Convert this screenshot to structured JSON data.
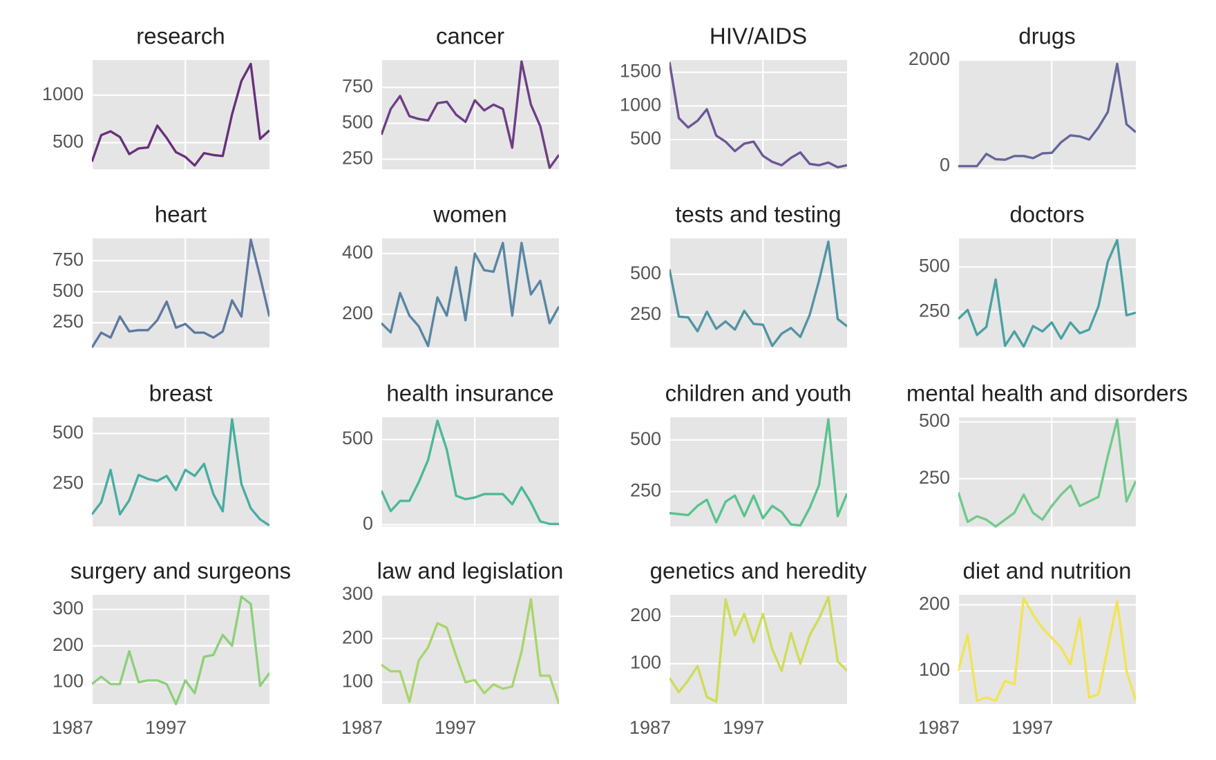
{
  "chart_data": [
    {
      "type": "line",
      "title": "research",
      "x": [
        1987,
        1988,
        1989,
        1990,
        1991,
        1992,
        1993,
        1994,
        1995,
        1996,
        1997,
        1998,
        1999,
        2000,
        2001,
        2002,
        2003,
        2004,
        2005,
        2006
      ],
      "xlim": [
        1987,
        2006
      ],
      "xticks": [
        1987,
        1997
      ],
      "series": [
        {
          "name": "research",
          "color": "#67307a",
          "values": [
            300,
            580,
            620,
            560,
            380,
            440,
            450,
            680,
            550,
            400,
            350,
            260,
            390,
            370,
            360,
            800,
            1150,
            1330,
            540,
            630
          ]
        }
      ],
      "ylim": [
        220,
        1370
      ],
      "yticks": [
        500,
        1000
      ],
      "grid": true
    },
    {
      "type": "line",
      "title": "cancer",
      "x": [
        1987,
        1988,
        1989,
        1990,
        1991,
        1992,
        1993,
        1994,
        1995,
        1996,
        1997,
        1998,
        1999,
        2000,
        2001,
        2002,
        2003,
        2004,
        2005,
        2006
      ],
      "xlim": [
        1987,
        2006
      ],
      "xticks": [
        1987,
        1997
      ],
      "series": [
        {
          "name": "cancer",
          "color": "#6e3e86",
          "values": [
            420,
            600,
            690,
            550,
            530,
            520,
            640,
            650,
            560,
            510,
            660,
            590,
            630,
            600,
            330,
            930,
            630,
            480,
            190,
            280
          ]
        }
      ],
      "ylim": [
        180,
        940
      ],
      "yticks": [
        250,
        500,
        750
      ],
      "grid": true
    },
    {
      "type": "line",
      "title": "HIV/AIDS",
      "x": [
        1987,
        1988,
        1989,
        1990,
        1991,
        1992,
        1993,
        1994,
        1995,
        1996,
        1997,
        1998,
        1999,
        2000,
        2001,
        2002,
        2003,
        2004,
        2005,
        2006
      ],
      "xlim": [
        1987,
        2006
      ],
      "xticks": [
        1987,
        1997
      ],
      "series": [
        {
          "name": "HIV/AIDS",
          "color": "#6b5696",
          "values": [
            1650,
            820,
            680,
            780,
            950,
            560,
            470,
            330,
            440,
            470,
            260,
            170,
            120,
            230,
            310,
            140,
            120,
            160,
            90,
            120
          ]
        }
      ],
      "ylim": [
        60,
        1680
      ],
      "yticks": [
        500,
        1000,
        1500
      ],
      "grid": true
    },
    {
      "type": "line",
      "title": "drugs",
      "x": [
        1987,
        1988,
        1989,
        1990,
        1991,
        1992,
        1993,
        1994,
        1995,
        1996,
        1997,
        1998,
        1999,
        2000,
        2001,
        2002,
        2003,
        2004,
        2005,
        2006
      ],
      "xlim": [
        1987,
        2006
      ],
      "xticks": [
        1987,
        1997
      ],
      "series": [
        {
          "name": "drugs",
          "color": "#65669b",
          "values": [
            0,
            0,
            0,
            230,
            130,
            120,
            190,
            190,
            150,
            240,
            250,
            450,
            580,
            560,
            500,
            730,
            1020,
            1930,
            790,
            640
          ]
        }
      ],
      "ylim": [
        -60,
        2000
      ],
      "yticks": [
        0,
        2000
      ],
      "grid": true
    },
    {
      "type": "line",
      "title": "heart",
      "x": [
        1987,
        1988,
        1989,
        1990,
        1991,
        1992,
        1993,
        1994,
        1995,
        1996,
        1997,
        1998,
        1999,
        2000,
        2001,
        2002,
        2003,
        2004,
        2005,
        2006
      ],
      "xlim": [
        1987,
        2006
      ],
      "xticks": [
        1987,
        1997
      ],
      "series": [
        {
          "name": "heart",
          "color": "#5e79a0",
          "values": [
            50,
            170,
            130,
            300,
            180,
            190,
            190,
            270,
            420,
            210,
            240,
            170,
            170,
            130,
            180,
            430,
            300,
            920,
            620,
            300
          ]
        }
      ],
      "ylim": [
        50,
        930
      ],
      "yticks": [
        250,
        500,
        750
      ],
      "grid": true
    },
    {
      "type": "line",
      "title": "women",
      "x": [
        1987,
        1988,
        1989,
        1990,
        1991,
        1992,
        1993,
        1994,
        1995,
        1996,
        1997,
        1998,
        1999,
        2000,
        2001,
        2002,
        2003,
        2004,
        2005,
        2006
      ],
      "xlim": [
        1987,
        2006
      ],
      "xticks": [
        1987,
        1997
      ],
      "series": [
        {
          "name": "women",
          "color": "#5886a3",
          "values": [
            170,
            140,
            270,
            195,
            160,
            95,
            255,
            195,
            355,
            180,
            400,
            345,
            340,
            435,
            195,
            435,
            265,
            310,
            170,
            225
          ]
        }
      ],
      "ylim": [
        90,
        450
      ],
      "yticks": [
        200,
        400
      ],
      "grid": true
    },
    {
      "type": "line",
      "title": "tests and testing",
      "x": [
        1987,
        1988,
        1989,
        1990,
        1991,
        1992,
        1993,
        1994,
        1995,
        1996,
        1997,
        1998,
        1999,
        2000,
        2001,
        2002,
        2003,
        2004,
        2005,
        2006
      ],
      "xlim": [
        1987,
        2006
      ],
      "xticks": [
        1987,
        1997
      ],
      "series": [
        {
          "name": "tests and testing",
          "color": "#5294a3",
          "values": [
            530,
            240,
            235,
            150,
            270,
            165,
            210,
            160,
            275,
            195,
            190,
            60,
            135,
            170,
            115,
            250,
            460,
            700,
            225,
            180
          ]
        }
      ],
      "ylim": [
        50,
        720
      ],
      "yticks": [
        250,
        500
      ],
      "grid": true
    },
    {
      "type": "line",
      "title": "doctors",
      "x": [
        1987,
        1988,
        1989,
        1990,
        1991,
        1992,
        1993,
        1994,
        1995,
        1996,
        1997,
        1998,
        1999,
        2000,
        2001,
        2002,
        2003,
        2004,
        2005,
        2006
      ],
      "xlim": [
        1987,
        2006
      ],
      "xticks": [
        1987,
        1997
      ],
      "series": [
        {
          "name": "doctors",
          "color": "#4aa1a2",
          "values": [
            210,
            260,
            120,
            165,
            430,
            60,
            140,
            55,
            170,
            140,
            190,
            100,
            190,
            130,
            150,
            280,
            530,
            650,
            230,
            245
          ]
        }
      ],
      "ylim": [
        50,
        660
      ],
      "yticks": [
        250,
        500
      ],
      "grid": true
    },
    {
      "type": "line",
      "title": "breast",
      "x": [
        1987,
        1988,
        1989,
        1990,
        1991,
        1992,
        1993,
        1994,
        1995,
        1996,
        1997,
        1998,
        1999,
        2000,
        2001,
        2002,
        2003,
        2004,
        2005,
        2006
      ],
      "xlim": [
        1987,
        2006
      ],
      "xticks": [
        1987,
        1997
      ],
      "series": [
        {
          "name": "breast",
          "color": "#48ada0",
          "values": [
            100,
            160,
            320,
            100,
            170,
            295,
            275,
            265,
            290,
            220,
            320,
            290,
            350,
            200,
            115,
            570,
            250,
            130,
            75,
            45
          ]
        }
      ],
      "ylim": [
        40,
        580
      ],
      "yticks": [
        250,
        500
      ],
      "grid": true
    },
    {
      "type": "line",
      "title": "health insurance",
      "x": [
        1987,
        1988,
        1989,
        1990,
        1991,
        1992,
        1993,
        1994,
        1995,
        1996,
        1997,
        1998,
        1999,
        2000,
        2001,
        2002,
        2003,
        2004,
        2005,
        2006
      ],
      "xlim": [
        1987,
        2006
      ],
      "xticks": [
        1987,
        1997
      ],
      "series": [
        {
          "name": "health insurance",
          "color": "#4cb898",
          "values": [
            200,
            80,
            140,
            140,
            250,
            380,
            610,
            440,
            170,
            150,
            160,
            180,
            180,
            180,
            120,
            220,
            130,
            20,
            5,
            5
          ]
        }
      ],
      "ylim": [
        -10,
        630
      ],
      "yticks": [
        0,
        500
      ],
      "grid": true
    },
    {
      "type": "line",
      "title": "children and youth",
      "x": [
        1987,
        1988,
        1989,
        1990,
        1991,
        1992,
        1993,
        1994,
        1995,
        1996,
        1997,
        1998,
        1999,
        2000,
        2001,
        2002,
        2003,
        2004,
        2005,
        2006
      ],
      "xlim": [
        1987,
        2006
      ],
      "xticks": [
        1987,
        1997
      ],
      "series": [
        {
          "name": "children and youth",
          "color": "#5ac28e",
          "values": [
            145,
            140,
            135,
            180,
            210,
            100,
            200,
            230,
            130,
            230,
            120,
            180,
            150,
            90,
            85,
            170,
            280,
            600,
            130,
            240
          ]
        }
      ],
      "ylim": [
        80,
        610
      ],
      "yticks": [
        250,
        500
      ],
      "grid": true
    },
    {
      "type": "line",
      "title": "mental health and disorders",
      "x": [
        1987,
        1988,
        1989,
        1990,
        1991,
        1992,
        1993,
        1994,
        1995,
        1996,
        1997,
        1998,
        1999,
        2000,
        2001,
        2002,
        2003,
        2004,
        2005,
        2006
      ],
      "xlim": [
        1987,
        2006
      ],
      "xticks": [
        1987,
        1997
      ],
      "series": [
        {
          "name": "mental health and disorders",
          "color": "#73c98a",
          "values": [
            190,
            60,
            85,
            70,
            40,
            70,
            100,
            180,
            100,
            70,
            130,
            180,
            220,
            130,
            150,
            170,
            350,
            510,
            150,
            240
          ]
        }
      ],
      "ylim": [
        40,
        520
      ],
      "yticks": [
        250,
        500
      ],
      "grid": true
    },
    {
      "type": "line",
      "title": "surgery and surgeons",
      "x": [
        1987,
        1988,
        1989,
        1990,
        1991,
        1992,
        1993,
        1994,
        1995,
        1996,
        1997,
        1998,
        1999,
        2000,
        2001,
        2002,
        2003,
        2004,
        2005,
        2006
      ],
      "xlim": [
        1987,
        2006
      ],
      "xticks": [
        1987,
        1997
      ],
      "series": [
        {
          "name": "surgery and surgeons",
          "color": "#8ecf7c",
          "values": [
            95,
            115,
            95,
            95,
            185,
            100,
            105,
            105,
            95,
            40,
            105,
            70,
            170,
            175,
            230,
            200,
            335,
            315,
            90,
            125
          ]
        }
      ],
      "ylim": [
        40,
        340
      ],
      "yticks": [
        100,
        200,
        300
      ],
      "grid": true
    },
    {
      "type": "line",
      "title": "law and legislation",
      "x": [
        1987,
        1988,
        1989,
        1990,
        1991,
        1992,
        1993,
        1994,
        1995,
        1996,
        1997,
        1998,
        1999,
        2000,
        2001,
        2002,
        2003,
        2004,
        2005,
        2006
      ],
      "xlim": [
        1987,
        2006
      ],
      "xticks": [
        1987,
        1997
      ],
      "series": [
        {
          "name": "law and legislation",
          "color": "#a8d56c",
          "values": [
            140,
            125,
            125,
            55,
            150,
            180,
            235,
            225,
            160,
            100,
            105,
            75,
            95,
            85,
            90,
            170,
            290,
            115,
            115,
            50
          ]
        }
      ],
      "ylim": [
        50,
        300
      ],
      "yticks": [
        100,
        200,
        300
      ],
      "grid": true
    },
    {
      "type": "line",
      "title": "genetics and heredity",
      "x": [
        1987,
        1988,
        1989,
        1990,
        1991,
        1992,
        1993,
        1994,
        1995,
        1996,
        1997,
        1998,
        1999,
        2000,
        2001,
        2002,
        2003,
        2004,
        2005,
        2006
      ],
      "xlim": [
        1987,
        2006
      ],
      "xticks": [
        1987,
        1997
      ],
      "series": [
        {
          "name": "genetics and heredity",
          "color": "#cfdc5a",
          "values": [
            70,
            40,
            65,
            95,
            30,
            20,
            235,
            160,
            205,
            145,
            205,
            130,
            85,
            165,
            100,
            160,
            195,
            240,
            105,
            85
          ]
        }
      ],
      "ylim": [
        15,
        245
      ],
      "yticks": [
        100,
        200
      ],
      "grid": true
    },
    {
      "type": "line",
      "title": "diet and nutrition",
      "x": [
        1987,
        1988,
        1989,
        1990,
        1991,
        1992,
        1993,
        1994,
        1995,
        1996,
        1997,
        1998,
        1999,
        2000,
        2001,
        2002,
        2003,
        2004,
        2005,
        2006
      ],
      "xlim": [
        1987,
        2006
      ],
      "xticks": [
        1987,
        1997
      ],
      "series": [
        {
          "name": "diet and nutrition",
          "color": "#f1e454",
          "values": [
            100,
            155,
            55,
            60,
            55,
            85,
            80,
            210,
            185,
            165,
            150,
            135,
            110,
            180,
            60,
            65,
            135,
            205,
            100,
            55
          ]
        }
      ],
      "ylim": [
        50,
        215
      ],
      "yticks": [
        100,
        200
      ],
      "grid": true
    }
  ]
}
